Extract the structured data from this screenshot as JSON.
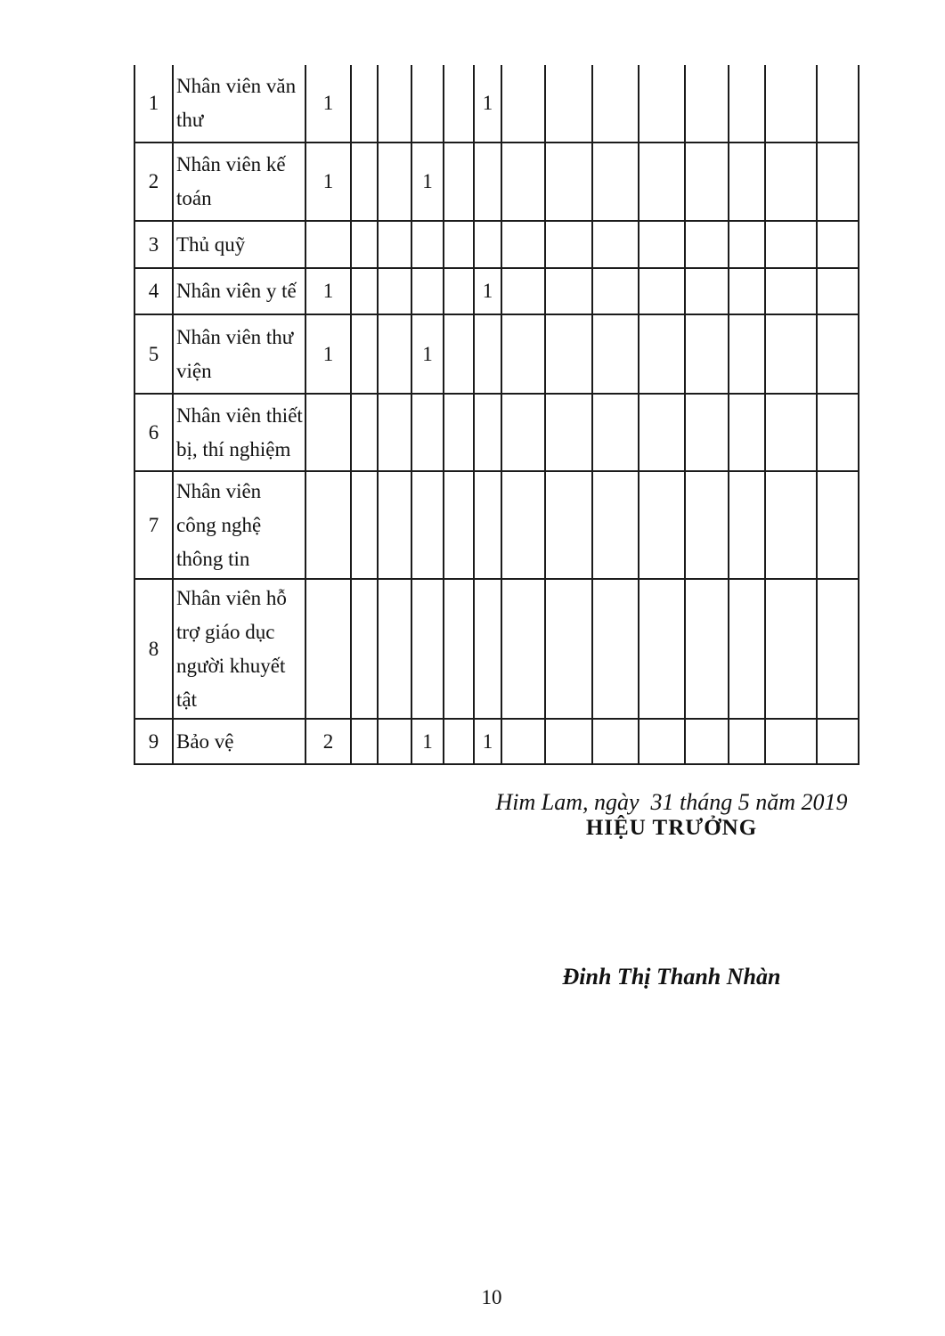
{
  "table": {
    "value_column_count": 14,
    "rows": [
      {
        "no": "1",
        "name": "Nhân viên văn\nthư",
        "values": [
          "1",
          "",
          "",
          "",
          "",
          "1",
          "",
          "",
          "",
          "",
          "",
          "",
          "",
          ""
        ]
      },
      {
        "no": "2",
        "name": "Nhân viên kế\ntoán",
        "values": [
          "1",
          "",
          "",
          "1",
          "",
          "",
          "",
          "",
          "",
          "",
          "",
          "",
          "",
          ""
        ]
      },
      {
        "no": "3",
        "name": "Thủ quỹ",
        "values": [
          "",
          "",
          "",
          "",
          "",
          "",
          "",
          "",
          "",
          "",
          "",
          "",
          "",
          ""
        ]
      },
      {
        "no": "4",
        "name": "Nhân viên y tế",
        "values": [
          "1",
          "",
          "",
          "",
          "",
          "1",
          "",
          "",
          "",
          "",
          "",
          "",
          "",
          ""
        ]
      },
      {
        "no": "5",
        "name": "Nhân viên thư\nviện",
        "values": [
          "1",
          "",
          "",
          "1",
          "",
          "",
          "",
          "",
          "",
          "",
          "",
          "",
          "",
          ""
        ]
      },
      {
        "no": "6",
        "name": "Nhân viên thiết\nbị, thí nghiệm",
        "values": [
          "",
          "",
          "",
          "",
          "",
          "",
          "",
          "",
          "",
          "",
          "",
          "",
          "",
          ""
        ]
      },
      {
        "no": "7",
        "name": "Nhân viên\ncông nghệ\nthông tin",
        "values": [
          "",
          "",
          "",
          "",
          "",
          "",
          "",
          "",
          "",
          "",
          "",
          "",
          "",
          ""
        ]
      },
      {
        "no": "8",
        "name": "Nhân viên hỗ\ntrợ giáo dục\nngười khuyết\ntật",
        "values": [
          "",
          "",
          "",
          "",
          "",
          "",
          "",
          "",
          "",
          "",
          "",
          "",
          "",
          ""
        ]
      },
      {
        "no": "9",
        "name": "Bảo vệ",
        "values": [
          "2",
          "",
          "",
          "1",
          "",
          "1",
          "",
          "",
          "",
          "",
          "",
          "",
          "",
          ""
        ]
      }
    ]
  },
  "signature": {
    "place_date": "Him Lam, ngày  31 tháng 5 năm 2019",
    "title": "HIỆU TRƯỞNG",
    "name": "Đinh Thị Thanh Nhàn"
  },
  "page_number": "10"
}
